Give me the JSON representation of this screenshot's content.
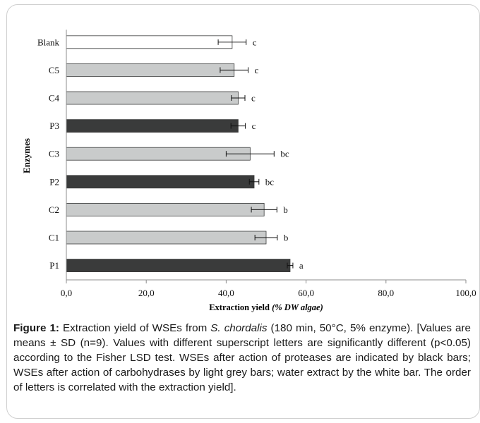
{
  "chart_data": {
    "type": "bar",
    "orientation": "horizontal",
    "categories": [
      "Blank",
      "C5",
      "C4",
      "P3",
      "C3",
      "P2",
      "C2",
      "C1",
      "P1"
    ],
    "values": [
      41.5,
      42.0,
      43.0,
      43.0,
      46.0,
      47.0,
      49.5,
      50.0,
      56.0
    ],
    "errors": [
      3.5,
      3.5,
      1.7,
      1.8,
      6.0,
      1.2,
      3.2,
      2.8,
      0.7
    ],
    "letters": [
      "c",
      "c",
      "c",
      "c",
      "bc",
      "bc",
      "b",
      "b",
      "a"
    ],
    "bar_colors": [
      "#ffffff",
      "#c9cbcb",
      "#c9cbcb",
      "#3a3b3b",
      "#c9cbcb",
      "#3a3b3b",
      "#c9cbcb",
      "#c9cbcb",
      "#3a3b3b"
    ],
    "xlabel_main": "Extraction yield ",
    "xlabel_italic": "(% DW algae)",
    "ylabel": "Enzymes",
    "xlim": [
      0,
      100
    ],
    "xticks": [
      "0,0",
      "20,0",
      "40,0",
      "60,0",
      "80,0",
      "100,0"
    ],
    "grid": false
  },
  "caption": {
    "label": "Figure 1:",
    "text1": " Extraction yield of WSEs from ",
    "species": "S. chordalis",
    "text2": " (180 min, 50°C, 5% enzyme). [Values are means ± SD (n=9). Values with different superscript letters are significantly different (p<0.05) according to the Fisher LSD test. WSEs after action of proteases are indicated by black bars; WSEs after action of carbohydrases by light grey bars; water extract by the white bar. The order of letters is correlated with the extraction yield]."
  }
}
